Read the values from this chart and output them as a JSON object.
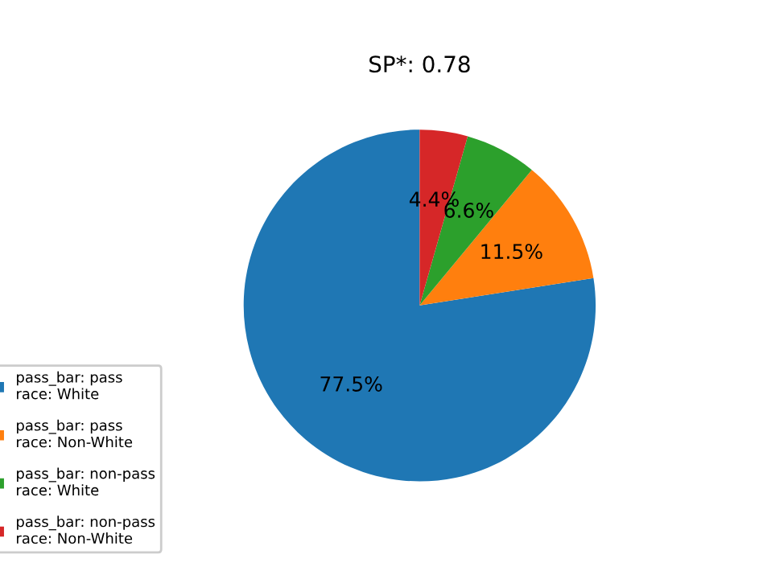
{
  "chart_data": {
    "type": "pie",
    "title": "SP*: 0.78",
    "categories": [
      "pass_bar: pass\nrace: White",
      "pass_bar: pass\nrace: Non-White",
      "pass_bar: non-pass\nrace: White",
      "pass_bar: non-pass\nrace: Non-White"
    ],
    "values": [
      77.5,
      11.5,
      6.6,
      4.4
    ],
    "colors": [
      "#1f77b4",
      "#ff7f0e",
      "#2ca02c",
      "#d62728"
    ],
    "value_labels": [
      "77.5%",
      "11.5%",
      "6.6%",
      "4.4%"
    ],
    "legend": "bottom left"
  }
}
